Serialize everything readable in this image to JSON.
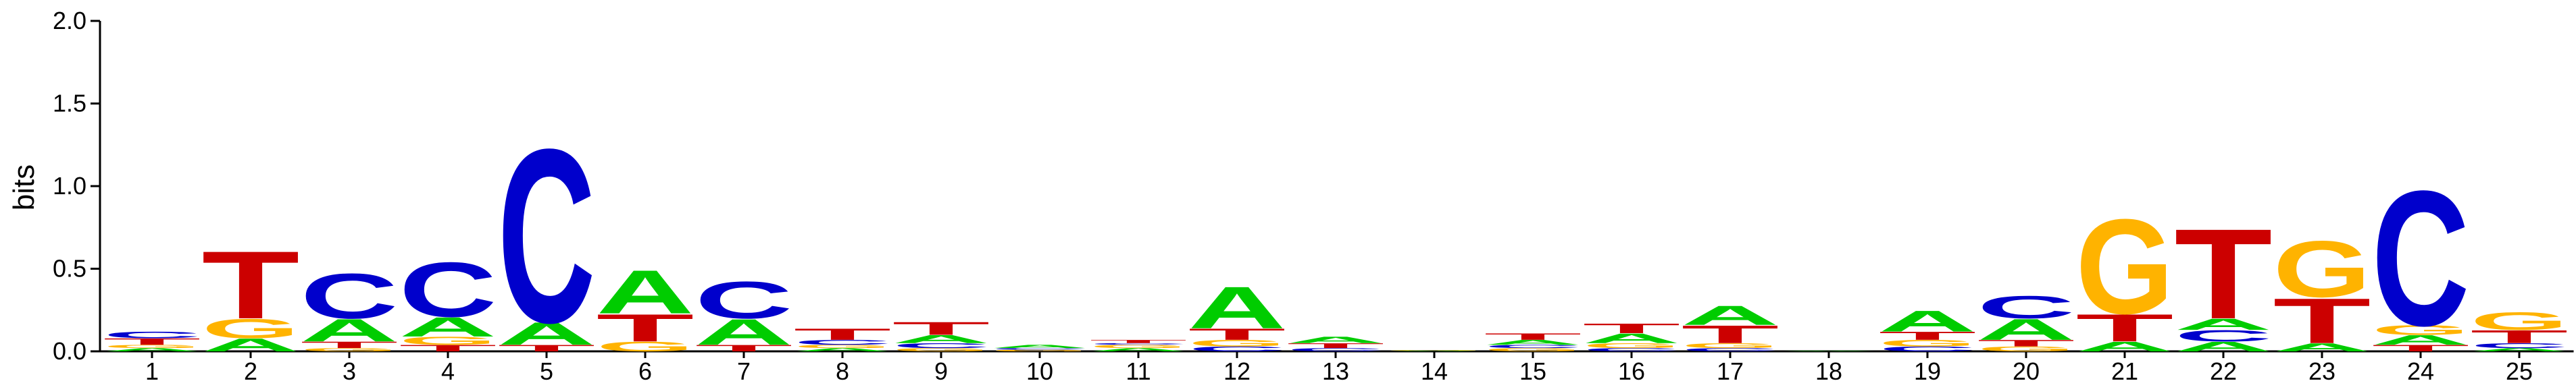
{
  "chart_data": {
    "type": "sequence-logo",
    "ylabel": "bits",
    "ylim": [
      0,
      2.0
    ],
    "yticks": [
      "0.0",
      "0.5",
      "1.0",
      "1.5",
      "2.0"
    ],
    "colors": {
      "A": "#00cc00",
      "C": "#0000cc",
      "G": "#ffb300",
      "T": "#cc0000"
    },
    "positions": [
      {
        "label": "1",
        "stack": [
          [
            "A",
            0.02
          ],
          [
            "G",
            0.02
          ],
          [
            "T",
            0.04
          ],
          [
            "C",
            0.04
          ]
        ]
      },
      {
        "label": "2",
        "stack": [
          [
            "A",
            0.08
          ],
          [
            "G",
            0.12
          ],
          [
            "T",
            0.42
          ]
        ]
      },
      {
        "label": "3",
        "stack": [
          [
            "G",
            0.02
          ],
          [
            "T",
            0.04
          ],
          [
            "A",
            0.14
          ],
          [
            "C",
            0.28
          ]
        ]
      },
      {
        "label": "4",
        "stack": [
          [
            "T",
            0.04
          ],
          [
            "G",
            0.05
          ],
          [
            "A",
            0.12
          ],
          [
            "C",
            0.34
          ]
        ]
      },
      {
        "label": "5",
        "stack": [
          [
            "T",
            0.04
          ],
          [
            "A",
            0.14
          ],
          [
            "C",
            1.08
          ]
        ]
      },
      {
        "label": "6",
        "stack": [
          [
            "G",
            0.06
          ],
          [
            "T",
            0.17
          ],
          [
            "A",
            0.27
          ]
        ]
      },
      {
        "label": "7",
        "stack": [
          [
            "T",
            0.04
          ],
          [
            "A",
            0.16
          ],
          [
            "C",
            0.23
          ]
        ]
      },
      {
        "label": "8",
        "stack": [
          [
            "A",
            0.02
          ],
          [
            "G",
            0.02
          ],
          [
            "C",
            0.03
          ],
          [
            "T",
            0.07
          ]
        ]
      },
      {
        "label": "9",
        "stack": [
          [
            "G",
            0.02
          ],
          [
            "C",
            0.03
          ],
          [
            "A",
            0.05
          ],
          [
            "T",
            0.08
          ]
        ]
      },
      {
        "label": "10",
        "stack": [
          [
            "G",
            0.01
          ],
          [
            "C",
            0.01
          ],
          [
            "A",
            0.02
          ]
        ]
      },
      {
        "label": "11",
        "stack": [
          [
            "A",
            0.02
          ],
          [
            "G",
            0.02
          ],
          [
            "C",
            0.01
          ],
          [
            "T",
            0.02
          ]
        ]
      },
      {
        "label": "12",
        "stack": [
          [
            "C",
            0.03
          ],
          [
            "G",
            0.04
          ],
          [
            "T",
            0.07
          ],
          [
            "A",
            0.26
          ]
        ]
      },
      {
        "label": "13",
        "stack": [
          [
            "C",
            0.02
          ],
          [
            "T",
            0.03
          ],
          [
            "A",
            0.04
          ]
        ]
      },
      {
        "label": "14",
        "stack": [
          [
            "A",
            0.004
          ],
          [
            "G",
            0.004
          ]
        ]
      },
      {
        "label": "15",
        "stack": [
          [
            "G",
            0.02
          ],
          [
            "C",
            0.02
          ],
          [
            "A",
            0.03
          ],
          [
            "T",
            0.04
          ]
        ]
      },
      {
        "label": "16",
        "stack": [
          [
            "C",
            0.02
          ],
          [
            "G",
            0.03
          ],
          [
            "A",
            0.06
          ],
          [
            "T",
            0.06
          ]
        ]
      },
      {
        "label": "17",
        "stack": [
          [
            "C",
            0.02
          ],
          [
            "G",
            0.03
          ],
          [
            "T",
            0.11
          ],
          [
            "A",
            0.12
          ]
        ]
      },
      {
        "label": "18",
        "stack": [
          [
            "A",
            0.004
          ]
        ]
      },
      {
        "label": "19",
        "stack": [
          [
            "C",
            0.03
          ],
          [
            "G",
            0.04
          ],
          [
            "T",
            0.05
          ],
          [
            "A",
            0.13
          ]
        ]
      },
      {
        "label": "20",
        "stack": [
          [
            "G",
            0.03
          ],
          [
            "T",
            0.04
          ],
          [
            "A",
            0.13
          ],
          [
            "C",
            0.14
          ]
        ]
      },
      {
        "label": "21",
        "stack": [
          [
            "A",
            0.06
          ],
          [
            "T",
            0.17
          ],
          [
            "G",
            0.59
          ]
        ]
      },
      {
        "label": "22",
        "stack": [
          [
            "A",
            0.06
          ],
          [
            "C",
            0.07
          ],
          [
            "A",
            0.07
          ],
          [
            "T",
            0.56
          ]
        ]
      },
      {
        "label": "23",
        "stack": [
          [
            "A",
            0.05
          ],
          [
            "T",
            0.28
          ],
          [
            "G",
            0.35
          ]
        ]
      },
      {
        "label": "24",
        "stack": [
          [
            "T",
            0.04
          ],
          [
            "A",
            0.06
          ],
          [
            "G",
            0.06
          ],
          [
            "C",
            0.84
          ]
        ]
      },
      {
        "label": "25",
        "stack": [
          [
            "A",
            0.02
          ],
          [
            "C",
            0.03
          ],
          [
            "T",
            0.08
          ],
          [
            "G",
            0.11
          ]
        ]
      }
    ]
  }
}
